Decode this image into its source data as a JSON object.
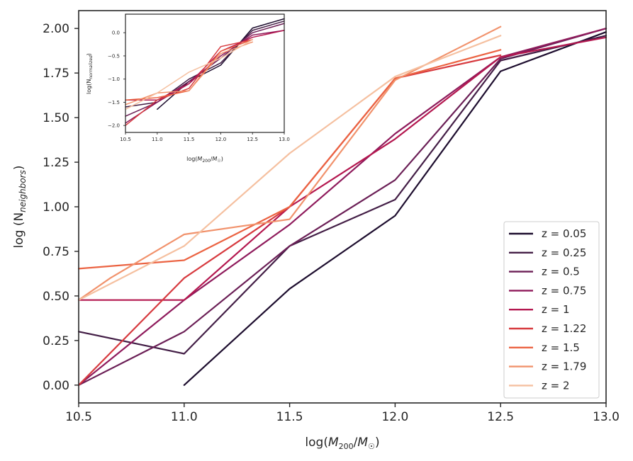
{
  "chart_data": {
    "type": "line",
    "xlabel": "log(M200/M☉)",
    "ylabel": "log (N_neighbors)",
    "xlim": [
      10.5,
      13.0
    ],
    "ylim": [
      -0.1,
      2.1
    ],
    "xticks": [
      10.5,
      11.0,
      11.5,
      12.0,
      12.5,
      13.0
    ],
    "xtick_labels": [
      "10.5",
      "11.0",
      "11.5",
      "12.0",
      "12.5",
      "13.0"
    ],
    "yticks": [
      0.0,
      0.25,
      0.5,
      0.75,
      1.0,
      1.25,
      1.5,
      1.75,
      2.0
    ],
    "ytick_labels": [
      "0.00",
      "0.25",
      "0.50",
      "0.75",
      "1.00",
      "1.25",
      "1.50",
      "1.75",
      "2.00"
    ],
    "legend_position": "lower right",
    "series": [
      {
        "name": "z = 0.05",
        "color": "#1d0d2e",
        "x": [
          11.0,
          11.5,
          12.0,
          12.5,
          13.0
        ],
        "y": [
          0.0,
          0.54,
          0.95,
          1.76,
          1.98
        ]
      },
      {
        "name": "z = 0.25",
        "color": "#431e46",
        "x": [
          10.5,
          11.0,
          11.5,
          12.0,
          12.5,
          13.0
        ],
        "y": [
          0.3,
          0.176,
          0.78,
          1.04,
          1.82,
          1.96
        ]
      },
      {
        "name": "z = 0.5",
        "color": "#6b1f56",
        "x": [
          10.5,
          11.0,
          11.5,
          12.0,
          12.5,
          13.0
        ],
        "y": [
          0.0,
          0.3,
          0.78,
          1.15,
          1.83,
          2.0
        ]
      },
      {
        "name": "z = 0.75",
        "color": "#8f1b5c",
        "x": [
          10.5,
          11.0,
          11.5,
          12.0,
          12.5,
          13.0
        ],
        "y": [
          0.0,
          0.477,
          0.9,
          1.41,
          1.84,
          2.0
        ]
      },
      {
        "name": "z = 1",
        "color": "#b4174f",
        "x": [
          10.5,
          11.0,
          11.5,
          12.0,
          12.5,
          13.0
        ],
        "y": [
          0.477,
          0.477,
          1.0,
          1.38,
          1.84,
          1.95
        ]
      },
      {
        "name": "z = 1.22",
        "color": "#d73a3f",
        "x": [
          10.5,
          11.0,
          11.5,
          12.0,
          12.5
        ],
        "y": [
          0.0,
          0.6,
          1.0,
          1.72,
          1.85
        ]
      },
      {
        "name": "z = 1.5",
        "color": "#eb6342",
        "x": [
          10.5,
          11.0,
          11.5,
          12.0,
          12.5
        ],
        "y": [
          0.653,
          0.7,
          1.0,
          1.72,
          1.88
        ]
      },
      {
        "name": "z = 1.79",
        "color": "#f1926c",
        "x": [
          10.5,
          10.65,
          11.0,
          11.5,
          12.0,
          12.5
        ],
        "y": [
          0.477,
          0.6,
          0.845,
          0.93,
          1.71,
          2.01
        ]
      },
      {
        "name": "z = 2",
        "color": "#f5c0a0",
        "x": [
          10.5,
          11.0,
          11.5,
          12.0,
          12.5
        ],
        "y": [
          0.477,
          0.78,
          1.3,
          1.73,
          1.96
        ]
      }
    ],
    "inset": {
      "xlabel": "log(M200/M☉)",
      "ylabel": "log(N_normalized)",
      "xlim": [
        10.5,
        13.0
      ],
      "ylim": [
        -2.15,
        0.4
      ],
      "xticks": [
        10.5,
        11.0,
        11.5,
        12.0,
        12.5,
        13.0
      ],
      "xtick_labels": [
        "10.5",
        "11.0",
        "11.5",
        "12.0",
        "12.5",
        "13.0"
      ],
      "yticks": [
        0.0,
        -0.5,
        -1.0,
        -1.5,
        -2.0
      ],
      "ytick_labels": [
        "0.0",
        "−0.5",
        "−1.0",
        "−1.5",
        "−2.0"
      ],
      "series": [
        {
          "name": "z = 0.05",
          "x": [
            11.0,
            11.5,
            12.0,
            12.5,
            13.0
          ],
          "y": [
            -1.65,
            -1.05,
            -0.7,
            0.1,
            0.3
          ]
        },
        {
          "name": "z = 0.25",
          "x": [
            10.5,
            11.0,
            11.5,
            12.0,
            12.5,
            13.0
          ],
          "y": [
            -1.6,
            -1.5,
            -1.0,
            -0.65,
            0.05,
            0.25
          ]
        },
        {
          "name": "z = 0.5",
          "x": [
            10.5,
            11.0,
            11.5,
            12.0,
            12.5,
            13.0
          ],
          "y": [
            -1.8,
            -1.5,
            -1.05,
            -0.55,
            0.0,
            0.2
          ]
        },
        {
          "name": "z = 0.75",
          "x": [
            10.5,
            11.0,
            11.5,
            12.0,
            12.5,
            13.0
          ],
          "y": [
            -1.95,
            -1.5,
            -1.1,
            -0.5,
            -0.05,
            0.05
          ]
        },
        {
          "name": "z = 1",
          "x": [
            10.5,
            11.0,
            11.5,
            12.0,
            12.5,
            13.0
          ],
          "y": [
            -1.45,
            -1.45,
            -1.1,
            -0.4,
            -0.1,
            0.05
          ]
        },
        {
          "name": "z = 1.22",
          "x": [
            10.5,
            11.0,
            11.5,
            12.0,
            12.5
          ],
          "y": [
            -2.0,
            -1.45,
            -1.2,
            -0.3,
            -0.15
          ]
        },
        {
          "name": "z = 1.5",
          "x": [
            10.5,
            11.0,
            11.5,
            12.0,
            12.5
          ],
          "y": [
            -1.45,
            -1.4,
            -1.25,
            -0.4,
            -0.15
          ]
        },
        {
          "name": "z = 1.79",
          "x": [
            10.5,
            11.0,
            11.5,
            12.0,
            12.5
          ],
          "y": [
            -1.55,
            -1.3,
            -1.25,
            -0.45,
            -0.2
          ]
        },
        {
          "name": "z = 2",
          "x": [
            10.5,
            11.0,
            11.5,
            12.0,
            12.5
          ],
          "y": [
            -1.65,
            -1.3,
            -0.85,
            -0.55,
            -0.15
          ]
        }
      ]
    }
  }
}
